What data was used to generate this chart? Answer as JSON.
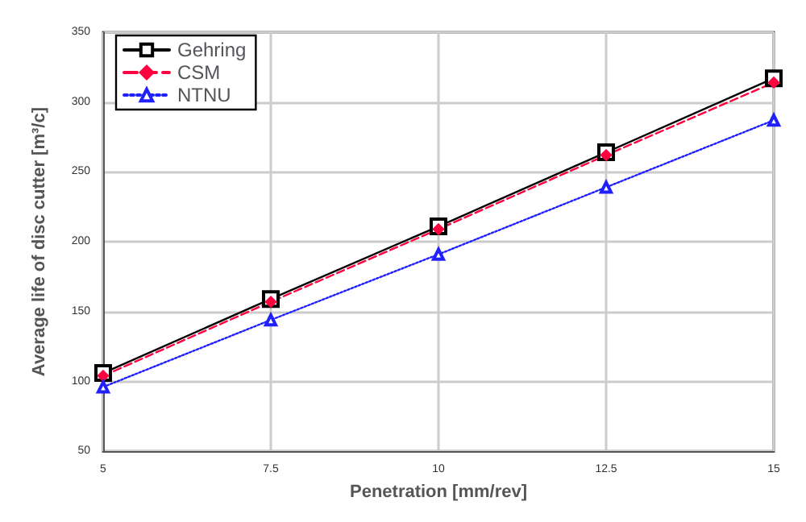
{
  "chart_data": {
    "type": "line",
    "xlabel": "Penetration [mm/rev]",
    "ylabel": "Average life of disc cutter [m³/c]",
    "x": [
      5,
      7.5,
      10,
      12.5,
      15
    ],
    "series": [
      {
        "name": "Gehring",
        "color": "#000000",
        "marker": "square",
        "line_style": "solid",
        "values": [
          106,
          159,
          211,
          264,
          317
        ]
      },
      {
        "name": "CSM",
        "color": "#ff0040",
        "marker": "diamond",
        "line_style": "dashed",
        "values": [
          104,
          157,
          209,
          262,
          314
        ]
      },
      {
        "name": "NTNU",
        "color": "#2020ff",
        "marker": "triangle",
        "line_style": "dotted",
        "values": [
          96,
          144,
          191,
          239,
          287
        ]
      }
    ],
    "xlim": [
      5,
      15
    ],
    "xticks": [
      5,
      7.5,
      10,
      12.5,
      15
    ],
    "ylim": [
      50,
      350
    ],
    "yticks": [
      50,
      100,
      150,
      200,
      250,
      300,
      350
    ],
    "grid": true,
    "legend": "top left"
  }
}
